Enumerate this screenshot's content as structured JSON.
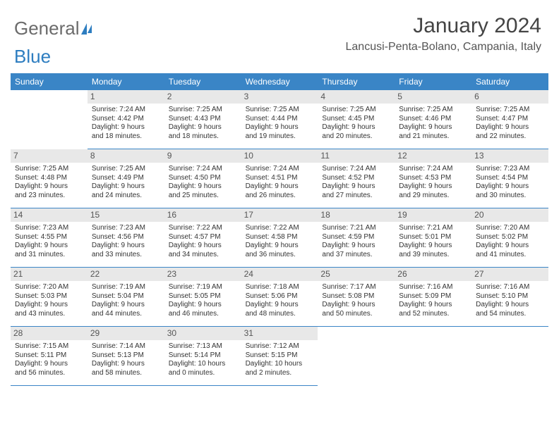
{
  "logo": {
    "part1": "General",
    "part2": "Blue"
  },
  "title": "January 2024",
  "location": "Lancusi-Penta-Bolano, Campania, Italy",
  "colors": {
    "header_bg": "#3a85c6",
    "header_text": "#ffffff",
    "daynum_bg": "#e8e8e8",
    "text": "#333333",
    "divider": "#3a85c6"
  },
  "weekdays": [
    "Sunday",
    "Monday",
    "Tuesday",
    "Wednesday",
    "Thursday",
    "Friday",
    "Saturday"
  ],
  "days": [
    {
      "n": "1",
      "sr": "Sunrise: 7:24 AM",
      "ss": "Sunset: 4:42 PM",
      "d1": "Daylight: 9 hours",
      "d2": "and 18 minutes."
    },
    {
      "n": "2",
      "sr": "Sunrise: 7:25 AM",
      "ss": "Sunset: 4:43 PM",
      "d1": "Daylight: 9 hours",
      "d2": "and 18 minutes."
    },
    {
      "n": "3",
      "sr": "Sunrise: 7:25 AM",
      "ss": "Sunset: 4:44 PM",
      "d1": "Daylight: 9 hours",
      "d2": "and 19 minutes."
    },
    {
      "n": "4",
      "sr": "Sunrise: 7:25 AM",
      "ss": "Sunset: 4:45 PM",
      "d1": "Daylight: 9 hours",
      "d2": "and 20 minutes."
    },
    {
      "n": "5",
      "sr": "Sunrise: 7:25 AM",
      "ss": "Sunset: 4:46 PM",
      "d1": "Daylight: 9 hours",
      "d2": "and 21 minutes."
    },
    {
      "n": "6",
      "sr": "Sunrise: 7:25 AM",
      "ss": "Sunset: 4:47 PM",
      "d1": "Daylight: 9 hours",
      "d2": "and 22 minutes."
    },
    {
      "n": "7",
      "sr": "Sunrise: 7:25 AM",
      "ss": "Sunset: 4:48 PM",
      "d1": "Daylight: 9 hours",
      "d2": "and 23 minutes."
    },
    {
      "n": "8",
      "sr": "Sunrise: 7:25 AM",
      "ss": "Sunset: 4:49 PM",
      "d1": "Daylight: 9 hours",
      "d2": "and 24 minutes."
    },
    {
      "n": "9",
      "sr": "Sunrise: 7:24 AM",
      "ss": "Sunset: 4:50 PM",
      "d1": "Daylight: 9 hours",
      "d2": "and 25 minutes."
    },
    {
      "n": "10",
      "sr": "Sunrise: 7:24 AM",
      "ss": "Sunset: 4:51 PM",
      "d1": "Daylight: 9 hours",
      "d2": "and 26 minutes."
    },
    {
      "n": "11",
      "sr": "Sunrise: 7:24 AM",
      "ss": "Sunset: 4:52 PM",
      "d1": "Daylight: 9 hours",
      "d2": "and 27 minutes."
    },
    {
      "n": "12",
      "sr": "Sunrise: 7:24 AM",
      "ss": "Sunset: 4:53 PM",
      "d1": "Daylight: 9 hours",
      "d2": "and 29 minutes."
    },
    {
      "n": "13",
      "sr": "Sunrise: 7:23 AM",
      "ss": "Sunset: 4:54 PM",
      "d1": "Daylight: 9 hours",
      "d2": "and 30 minutes."
    },
    {
      "n": "14",
      "sr": "Sunrise: 7:23 AM",
      "ss": "Sunset: 4:55 PM",
      "d1": "Daylight: 9 hours",
      "d2": "and 31 minutes."
    },
    {
      "n": "15",
      "sr": "Sunrise: 7:23 AM",
      "ss": "Sunset: 4:56 PM",
      "d1": "Daylight: 9 hours",
      "d2": "and 33 minutes."
    },
    {
      "n": "16",
      "sr": "Sunrise: 7:22 AM",
      "ss": "Sunset: 4:57 PM",
      "d1": "Daylight: 9 hours",
      "d2": "and 34 minutes."
    },
    {
      "n": "17",
      "sr": "Sunrise: 7:22 AM",
      "ss": "Sunset: 4:58 PM",
      "d1": "Daylight: 9 hours",
      "d2": "and 36 minutes."
    },
    {
      "n": "18",
      "sr": "Sunrise: 7:21 AM",
      "ss": "Sunset: 4:59 PM",
      "d1": "Daylight: 9 hours",
      "d2": "and 37 minutes."
    },
    {
      "n": "19",
      "sr": "Sunrise: 7:21 AM",
      "ss": "Sunset: 5:01 PM",
      "d1": "Daylight: 9 hours",
      "d2": "and 39 minutes."
    },
    {
      "n": "20",
      "sr": "Sunrise: 7:20 AM",
      "ss": "Sunset: 5:02 PM",
      "d1": "Daylight: 9 hours",
      "d2": "and 41 minutes."
    },
    {
      "n": "21",
      "sr": "Sunrise: 7:20 AM",
      "ss": "Sunset: 5:03 PM",
      "d1": "Daylight: 9 hours",
      "d2": "and 43 minutes."
    },
    {
      "n": "22",
      "sr": "Sunrise: 7:19 AM",
      "ss": "Sunset: 5:04 PM",
      "d1": "Daylight: 9 hours",
      "d2": "and 44 minutes."
    },
    {
      "n": "23",
      "sr": "Sunrise: 7:19 AM",
      "ss": "Sunset: 5:05 PM",
      "d1": "Daylight: 9 hours",
      "d2": "and 46 minutes."
    },
    {
      "n": "24",
      "sr": "Sunrise: 7:18 AM",
      "ss": "Sunset: 5:06 PM",
      "d1": "Daylight: 9 hours",
      "d2": "and 48 minutes."
    },
    {
      "n": "25",
      "sr": "Sunrise: 7:17 AM",
      "ss": "Sunset: 5:08 PM",
      "d1": "Daylight: 9 hours",
      "d2": "and 50 minutes."
    },
    {
      "n": "26",
      "sr": "Sunrise: 7:16 AM",
      "ss": "Sunset: 5:09 PM",
      "d1": "Daylight: 9 hours",
      "d2": "and 52 minutes."
    },
    {
      "n": "27",
      "sr": "Sunrise: 7:16 AM",
      "ss": "Sunset: 5:10 PM",
      "d1": "Daylight: 9 hours",
      "d2": "and 54 minutes."
    },
    {
      "n": "28",
      "sr": "Sunrise: 7:15 AM",
      "ss": "Sunset: 5:11 PM",
      "d1": "Daylight: 9 hours",
      "d2": "and 56 minutes."
    },
    {
      "n": "29",
      "sr": "Sunrise: 7:14 AM",
      "ss": "Sunset: 5:13 PM",
      "d1": "Daylight: 9 hours",
      "d2": "and 58 minutes."
    },
    {
      "n": "30",
      "sr": "Sunrise: 7:13 AM",
      "ss": "Sunset: 5:14 PM",
      "d1": "Daylight: 10 hours",
      "d2": "and 0 minutes."
    },
    {
      "n": "31",
      "sr": "Sunrise: 7:12 AM",
      "ss": "Sunset: 5:15 PM",
      "d1": "Daylight: 10 hours",
      "d2": "and 2 minutes."
    }
  ],
  "layout": {
    "start_offset": 1,
    "columns": 7,
    "rows": 5
  }
}
